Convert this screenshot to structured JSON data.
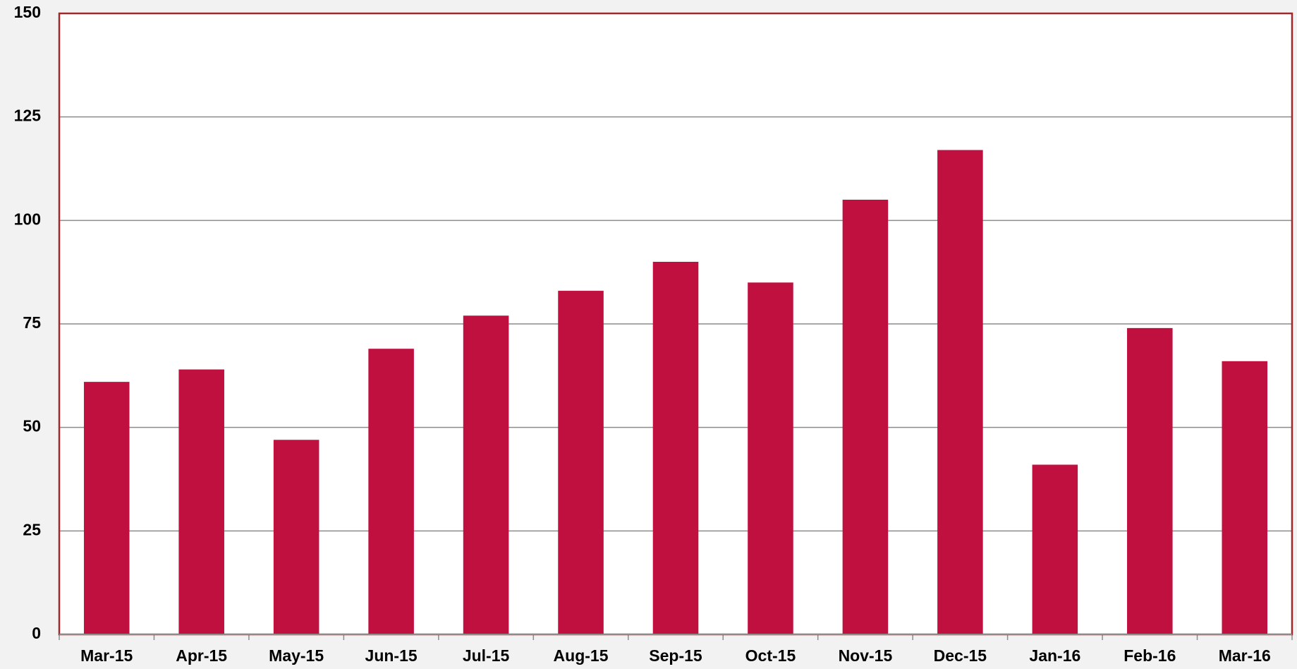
{
  "chart_data": {
    "type": "bar",
    "categories": [
      "Mar-15",
      "Apr-15",
      "May-15",
      "Jun-15",
      "Jul-15",
      "Aug-15",
      "Sep-15",
      "Oct-15",
      "Nov-15",
      "Dec-15",
      "Jan-16",
      "Feb-16",
      "Mar-16"
    ],
    "values": [
      61,
      64,
      47,
      69,
      77,
      83,
      90,
      85,
      105,
      117,
      41,
      74,
      66
    ],
    "color": "#c0103f",
    "ylim": [
      0,
      150
    ],
    "yticks": [
      0,
      25,
      50,
      75,
      100,
      125,
      150
    ],
    "grid": true
  }
}
